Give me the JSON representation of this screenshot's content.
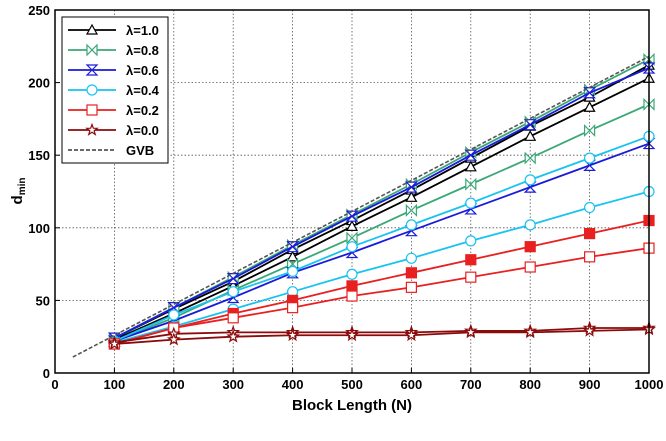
{
  "chart_data": {
    "type": "line",
    "xlabel": "Block Length (N)",
    "ylabel_main": "d",
    "ylabel_sub": "min",
    "xlim": [
      0,
      1000
    ],
    "ylim": [
      0,
      250
    ],
    "xticks": [
      0,
      100,
      200,
      300,
      400,
      500,
      600,
      700,
      800,
      900,
      1000
    ],
    "yticks": [
      0,
      50,
      100,
      150,
      200,
      250
    ],
    "grid": true,
    "legend_position": "top-left",
    "x": [
      100,
      200,
      300,
      400,
      500,
      600,
      700,
      800,
      900,
      1000
    ],
    "series": [
      {
        "name": "λ=1.0",
        "color": "#000000",
        "marker": "triangle",
        "curves": [
          {
            "values": [
              24,
              44,
              63,
              85,
              105,
              126,
              148,
              170,
              190,
              212
            ]
          },
          {
            "values": [
              23,
              41,
              60,
              80,
              101,
              121,
              142,
              163,
              183,
              203
            ]
          }
        ]
      },
      {
        "name": "λ=0.8",
        "color": "#3aa876",
        "marker": "bowtie",
        "curves": [
          {
            "values": [
              24,
              45,
              66,
              88,
              109,
              130,
              152,
              173,
              195,
              216
            ]
          },
          {
            "values": [
              22,
              38,
              57,
              75,
              93,
              112,
              130,
              148,
              167,
              185
            ]
          }
        ]
      },
      {
        "name": "λ=0.6",
        "color": "#1a1adb",
        "marker": "hourglass",
        "curves": [
          {
            "values": [
              24,
              45,
              65,
              87,
              108,
              128,
              150,
              171,
              193,
              210
            ]
          },
          {
            "values": [
              22,
              36,
              52,
              69,
              83,
              98,
              113,
              128,
              143,
              158
            ]
          }
        ]
      },
      {
        "name": "λ=0.4",
        "color": "#19c3f0",
        "marker": "circle",
        "curves": [
          {
            "values": [
              22,
              40,
              56,
              70,
              87,
              102,
              117,
              133,
              148,
              163
            ]
          },
          {
            "values": [
              21,
              32,
              44,
              56,
              68,
              79,
              91,
              102,
              114,
              125
            ]
          }
        ]
      },
      {
        "name": "λ=0.2",
        "color": "#e82020",
        "marker": "square",
        "curves": [
          {
            "values": [
              20,
              31,
              41,
              50,
              60,
              69,
              78,
              87,
              96,
              105
            ],
            "filled": true
          },
          {
            "values": [
              20,
              31,
              38,
              45,
              53,
              59,
              66,
              73,
              80,
              86
            ],
            "filled": false
          }
        ]
      },
      {
        "name": "λ=0.0",
        "color": "#8b0a0a",
        "marker": "star",
        "curves": [
          {
            "values": [
              21,
              27,
              28,
              28,
              28,
              28,
              29,
              29,
              31,
              31
            ]
          },
          {
            "values": [
              20,
              23,
              25,
              26,
              26,
              26,
              28,
              28,
              29,
              30
            ]
          }
        ]
      },
      {
        "name": "GVB",
        "color": "#555555",
        "marker": "none",
        "dashed": true,
        "x": [
          30,
          1000
        ],
        "values": [
          11,
          218
        ]
      }
    ]
  }
}
